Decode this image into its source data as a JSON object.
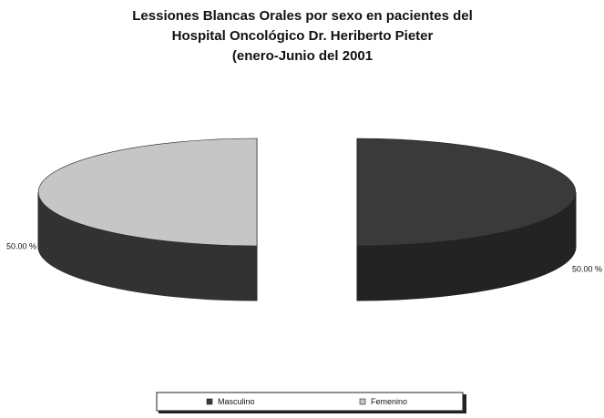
{
  "chart_data": {
    "type": "pie3d",
    "title": [
      "Lessiones Blancas Orales por sexo en pacientes del",
      "Hospital Oncológico Dr. Heriberto Pieter",
      "(enero-Junio del 2001"
    ],
    "categories": [
      "Masculino",
      "Femenino"
    ],
    "values": [
      50,
      50
    ],
    "value_labels": [
      "50.00 %",
      "50.00 %"
    ],
    "colors": [
      "#3a3a3a",
      "#c6c6c6"
    ],
    "legend": "bottom"
  }
}
